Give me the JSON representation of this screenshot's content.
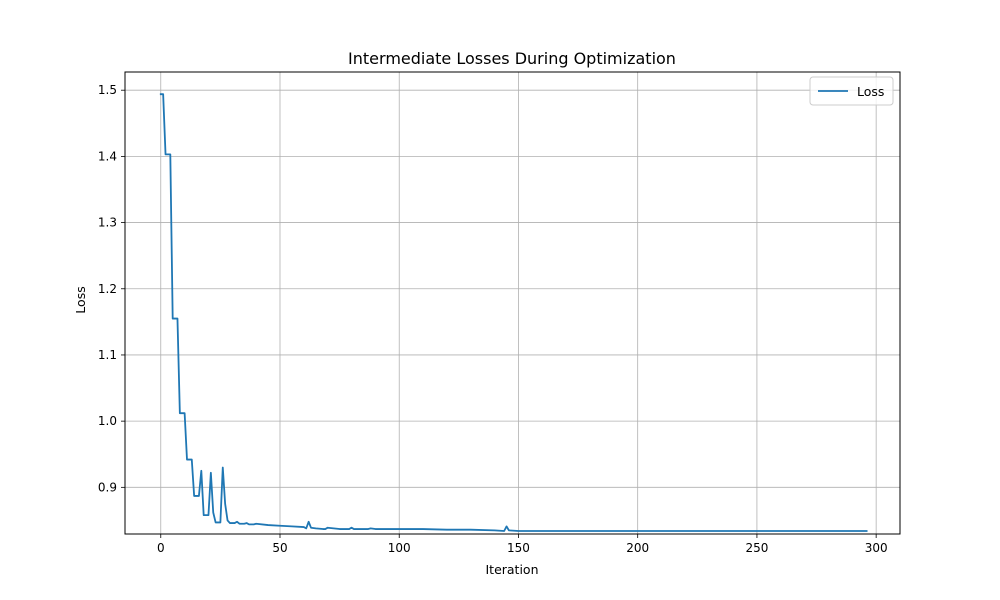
{
  "chart_data": {
    "type": "line",
    "title": "Intermediate Losses During Optimization",
    "xlabel": "Iteration",
    "ylabel": "Loss",
    "xlim": [
      -15,
      310
    ],
    "ylim": [
      0.8295,
      1.5275
    ],
    "xticks": [
      0,
      50,
      100,
      150,
      200,
      250,
      300
    ],
    "yticks": [
      0.9,
      1.0,
      1.1,
      1.2,
      1.3,
      1.4,
      1.5
    ],
    "xtick_labels": [
      "0",
      "50",
      "100",
      "150",
      "200",
      "250",
      "300"
    ],
    "ytick_labels": [
      "0.9",
      "1.0",
      "1.1",
      "1.2",
      "1.3",
      "1.4",
      "1.5"
    ],
    "grid": true,
    "legend": {
      "position": "top-right"
    },
    "colors": {
      "line": "#1f77b4",
      "grid": "#b0b0b0",
      "frame": "#000000"
    },
    "series": [
      {
        "name": "Loss",
        "x": [
          0,
          1,
          2,
          3,
          4,
          5,
          6,
          7,
          8,
          9,
          10,
          11,
          12,
          13,
          14,
          15,
          16,
          17,
          18,
          19,
          20,
          21,
          22,
          23,
          24,
          25,
          26,
          27,
          28,
          29,
          30,
          31,
          32,
          33,
          34,
          35,
          36,
          37,
          38,
          39,
          40,
          45,
          50,
          55,
          60,
          61,
          62,
          63,
          65,
          68,
          69,
          70,
          75,
          79,
          80,
          81,
          85,
          87,
          88,
          90,
          100,
          110,
          120,
          130,
          140,
          144,
          145,
          146,
          150,
          160,
          200,
          250,
          296
        ],
        "y": [
          1.494,
          1.494,
          1.403,
          1.403,
          1.403,
          1.155,
          1.155,
          1.155,
          1.012,
          1.012,
          1.012,
          0.942,
          0.942,
          0.942,
          0.887,
          0.887,
          0.887,
          0.925,
          0.858,
          0.858,
          0.858,
          0.922,
          0.862,
          0.847,
          0.847,
          0.847,
          0.93,
          0.875,
          0.85,
          0.846,
          0.846,
          0.846,
          0.848,
          0.845,
          0.845,
          0.845,
          0.846,
          0.844,
          0.844,
          0.844,
          0.845,
          0.843,
          0.842,
          0.841,
          0.84,
          0.838,
          0.848,
          0.839,
          0.838,
          0.837,
          0.837,
          0.839,
          0.837,
          0.837,
          0.839,
          0.837,
          0.837,
          0.837,
          0.838,
          0.837,
          0.837,
          0.837,
          0.836,
          0.836,
          0.835,
          0.834,
          0.841,
          0.835,
          0.834,
          0.834,
          0.834,
          0.834,
          0.834
        ]
      }
    ]
  }
}
